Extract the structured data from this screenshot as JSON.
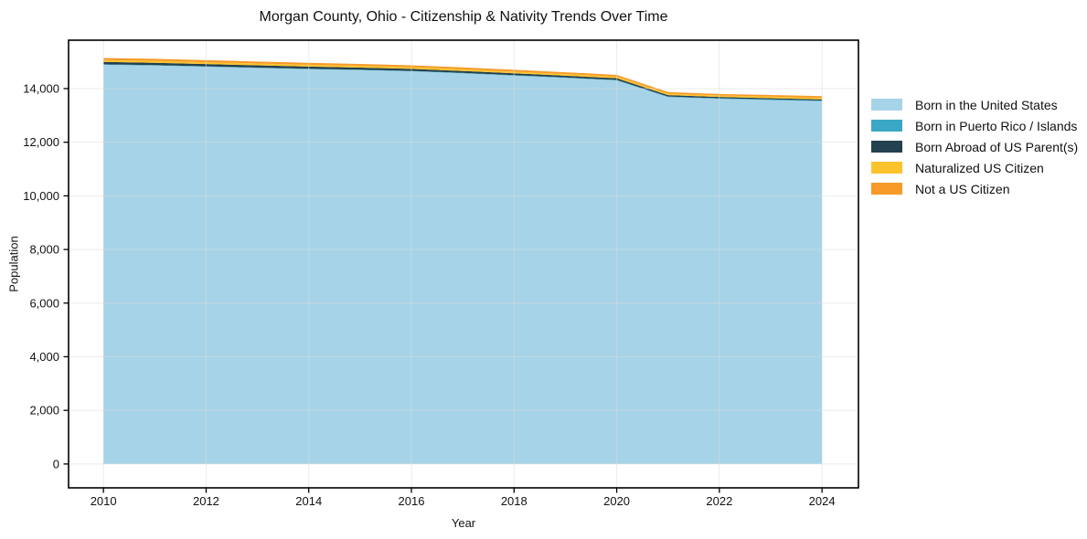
{
  "figure": {
    "background": "#ffffff",
    "text_color": "#111111",
    "grid_color": "#dcdcdc",
    "spine_color": "#000000"
  },
  "chart_data": {
    "type": "area",
    "stacked": true,
    "title": "Morgan County, Ohio - Citizenship & Nativity Trends Over Time",
    "xlabel": "Year",
    "ylabel": "Population",
    "grid": true,
    "legend_position": "right-outside",
    "x": [
      2010,
      2011,
      2012,
      2013,
      2014,
      2015,
      2016,
      2017,
      2018,
      2019,
      2020,
      2021,
      2022,
      2023,
      2024
    ],
    "x_ticks": [
      2010,
      2012,
      2014,
      2016,
      2018,
      2020,
      2022,
      2024
    ],
    "y_ticks": [
      0,
      2000,
      4000,
      6000,
      8000,
      10000,
      12000,
      14000
    ],
    "y_tick_labels": [
      "0",
      "2,000",
      "4,000",
      "6,000",
      "8,000",
      "10,000",
      "12,000",
      "14,000"
    ],
    "xlim": [
      2009.32,
      2024.71
    ],
    "ylim": [
      -890,
      15805
    ],
    "series": [
      {
        "name": "Born in the United States",
        "color": "#a6d3e8",
        "values": [
          14890,
          14860,
          14815,
          14770,
          14725,
          14690,
          14645,
          14570,
          14485,
          14400,
          14305,
          13685,
          13620,
          13575,
          13530
        ]
      },
      {
        "name": "Born in Puerto Rico / Islands",
        "color": "#3aa7c4",
        "values": [
          15,
          15,
          15,
          15,
          15,
          15,
          15,
          15,
          15,
          15,
          20,
          20,
          20,
          22,
          25
        ]
      },
      {
        "name": "Born Abroad of US Parent(s)",
        "color": "#24414f",
        "values": [
          90,
          88,
          85,
          82,
          80,
          77,
          75,
          72,
          68,
          65,
          60,
          50,
          48,
          45,
          42
        ]
      },
      {
        "name": "Naturalized US Citizen",
        "color": "#fcc32d",
        "values": [
          70,
          70,
          70,
          69,
          68,
          68,
          67,
          66,
          65,
          64,
          62,
          58,
          57,
          58,
          60
        ]
      },
      {
        "name": "Not a US Citizen",
        "color": "#f79a28",
        "values": [
          75,
          77,
          75,
          74,
          72,
          70,
          68,
          67,
          67,
          66,
          63,
          57,
          55,
          60,
          63
        ]
      }
    ]
  }
}
